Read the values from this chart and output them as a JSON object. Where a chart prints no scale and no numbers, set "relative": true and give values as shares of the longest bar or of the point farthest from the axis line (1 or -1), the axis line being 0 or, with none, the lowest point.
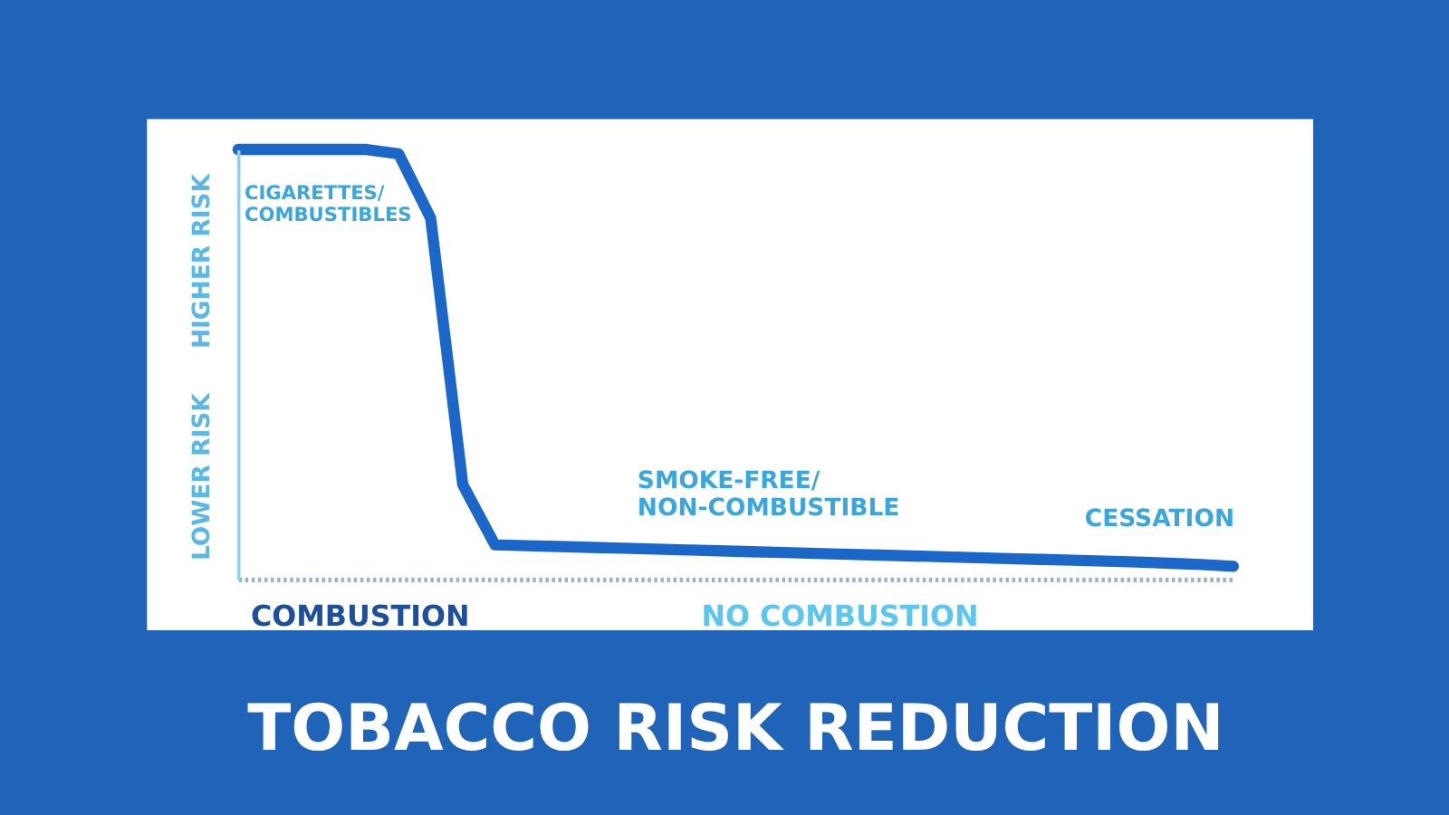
{
  "chart_data": {
    "type": "line",
    "title": "TOBACCO RISK REDUCTION",
    "relative": true,
    "line_style": "solid",
    "categories": [
      null,
      null,
      null,
      null,
      null,
      null,
      null,
      null,
      null,
      null,
      null,
      null,
      null,
      null,
      null,
      null,
      null,
      null,
      null,
      null,
      null,
      null,
      null,
      null,
      null,
      null,
      null,
      null,
      null,
      null,
      null,
      null
    ],
    "series": [
      {
        "color": "#1a66c9",
        "values": [
          1,
          1,
          1,
          1,
          1,
          0.99,
          0.84,
          0.22,
          0.08,
          0.078,
          0.076,
          0.074,
          0.072,
          0.07,
          0.068,
          0.066,
          0.064,
          0.062,
          0.06,
          0.058,
          0.056,
          0.054,
          0.052,
          0.05,
          0.048,
          0.046,
          0.044,
          0.042,
          0.04,
          0.037,
          0.034,
          0.03
        ]
      }
    ],
    "annotations": [
      "HIGHER RISK",
      "LOWER RISK",
      "CIGARETTES/\nCOMBUSTIBLES",
      "SMOKE-FREE/\nNON-COMBUSTIBLE",
      "CESSATION",
      "COMBUSTION",
      "NO COMBUSTION"
    ]
  }
}
